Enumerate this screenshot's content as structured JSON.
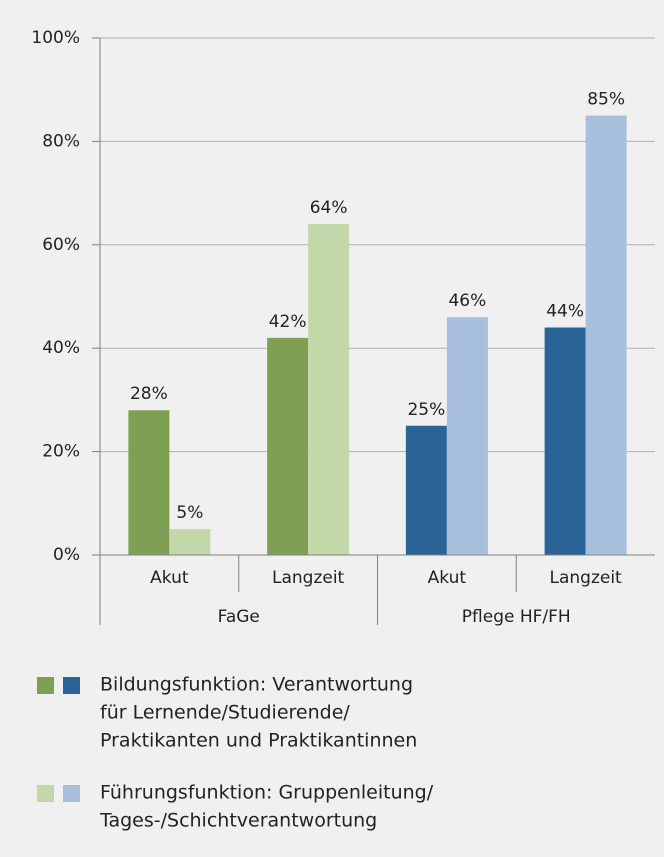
{
  "chart_data": {
    "type": "bar",
    "categories": [
      "Akut",
      "Langzeit",
      "Akut",
      "Langzeit"
    ],
    "groups": [
      {
        "label": "FaGe",
        "categories": [
          0,
          1
        ]
      },
      {
        "label": "Pflege HF/FH",
        "categories": [
          2,
          3
        ]
      }
    ],
    "series": [
      {
        "name": [
          "Bildungsfunktion: Verantwortung",
          "für Lernende/Studierende/",
          "Praktikanten und Praktikantinnen"
        ],
        "colors": [
          "#7f9f55",
          "#7f9f55",
          "#2a6496",
          "#2a6496"
        ],
        "values": [
          28,
          42,
          25,
          44
        ],
        "value_labels": [
          "28%",
          "42%",
          "25%",
          "44%"
        ]
      },
      {
        "name": [
          "Führungsfunktion: Gruppenleitung/",
          "Tages-/Schichtverantwortung"
        ],
        "colors": [
          "#c2d8a8",
          "#c2d8a8",
          "#a7bfdd",
          "#a7bfdd"
        ],
        "values": [
          5,
          64,
          46,
          85
        ],
        "value_labels": [
          "5%",
          "64%",
          "46%",
          "85%"
        ]
      }
    ],
    "ylim": [
      0,
      100
    ],
    "yticks": [
      {
        "value": 0,
        "label": "0%"
      },
      {
        "value": 20,
        "label": "20%"
      },
      {
        "value": 40,
        "label": "40%"
      },
      {
        "value": 60,
        "label": "60%"
      },
      {
        "value": 80,
        "label": "80%"
      },
      {
        "value": 100,
        "label": "100%"
      }
    ],
    "grid": true
  }
}
